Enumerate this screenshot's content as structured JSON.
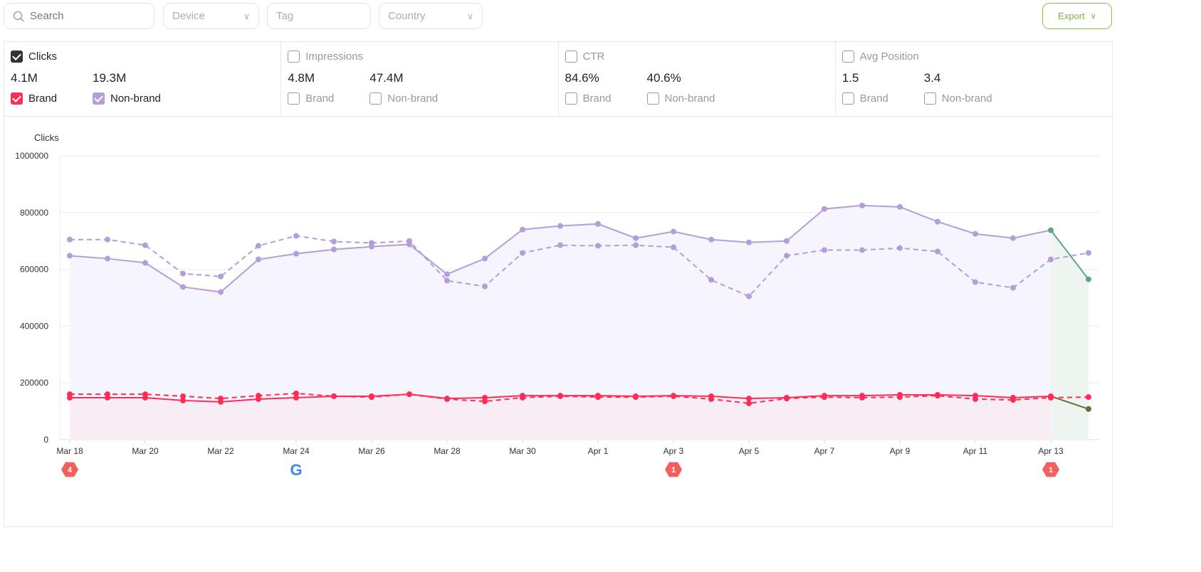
{
  "filters": {
    "search_placeholder": "Search",
    "device": "Device",
    "tag": "Tag",
    "country": "Country",
    "export": "Export"
  },
  "metrics": [
    {
      "title": "Clicks",
      "checked": true,
      "brand_value": "4.1M",
      "nonbrand_value": "19.3M",
      "brand_label": "Brand",
      "nonbrand_label": "Non-brand",
      "brand_checked": true,
      "nonbrand_checked": true
    },
    {
      "title": "Impressions",
      "checked": false,
      "brand_value": "4.8M",
      "nonbrand_value": "47.4M",
      "brand_label": "Brand",
      "nonbrand_label": "Non-brand",
      "brand_checked": false,
      "nonbrand_checked": false
    },
    {
      "title": "CTR",
      "checked": false,
      "brand_value": "84.6%",
      "nonbrand_value": "40.6%",
      "brand_label": "Brand",
      "nonbrand_label": "Non-brand",
      "brand_checked": false,
      "nonbrand_checked": false
    },
    {
      "title": "Avg Position",
      "checked": false,
      "brand_value": "1.5",
      "nonbrand_value": "3.4",
      "brand_label": "Brand",
      "nonbrand_label": "Non-brand",
      "brand_checked": false,
      "nonbrand_checked": false
    }
  ],
  "colors": {
    "brand": "#ff2d55",
    "nonbrand": "#b39ddb",
    "partial": "#5aa889",
    "partial_brand": "#6b6b3a",
    "clicks_check": "#333333",
    "export": "#7cb342",
    "annotation": "#f25f5c"
  },
  "chart_data": {
    "type": "line",
    "ylabel": "Clicks",
    "ylim": [
      0,
      1000000
    ],
    "yticks": [
      "0",
      "200000",
      "400000",
      "600000",
      "800000",
      "1000000"
    ],
    "x": [
      "Mar 18",
      "Mar 19",
      "Mar 20",
      "Mar 21",
      "Mar 22",
      "Mar 23",
      "Mar 24",
      "Mar 25",
      "Mar 26",
      "Mar 27",
      "Mar 28",
      "Mar 29",
      "Mar 30",
      "Mar 31",
      "Apr 1",
      "Apr 2",
      "Apr 3",
      "Apr 4",
      "Apr 5",
      "Apr 6",
      "Apr 7",
      "Apr 8",
      "Apr 9",
      "Apr 10",
      "Apr 11",
      "Apr 12",
      "Apr 13",
      "Apr 14"
    ],
    "xticks": [
      "Mar 18",
      "Mar 20",
      "Mar 22",
      "Mar 24",
      "Mar 26",
      "Mar 28",
      "Mar 30",
      "Apr 1",
      "Apr 3",
      "Apr 5",
      "Apr 7",
      "Apr 9",
      "Apr 11",
      "Apr 13"
    ],
    "grid": true,
    "partial_from": "Apr 13",
    "series": [
      {
        "key": "nonbrand",
        "style": "solid",
        "values": [
          648000,
          638000,
          623000,
          538000,
          520000,
          635000,
          655000,
          670000,
          680000,
          688000,
          583000,
          638000,
          740000,
          753000,
          760000,
          710000,
          733000,
          705000,
          695000,
          700000,
          813000,
          825000,
          820000,
          768000,
          725000,
          710000,
          738000,
          565000
        ]
      },
      {
        "key": "nonbrand",
        "style": "dashed",
        "values": [
          705000,
          705000,
          685000,
          585000,
          575000,
          683000,
          718000,
          698000,
          693000,
          700000,
          560000,
          540000,
          658000,
          685000,
          683000,
          685000,
          678000,
          563000,
          505000,
          648000,
          668000,
          668000,
          675000,
          663000,
          555000,
          535000,
          635000,
          658000
        ]
      },
      {
        "key": "brand",
        "style": "solid",
        "values": [
          148000,
          148000,
          148000,
          138000,
          133000,
          143000,
          148000,
          153000,
          153000,
          160000,
          145000,
          148000,
          155000,
          155000,
          155000,
          153000,
          155000,
          153000,
          145000,
          148000,
          155000,
          155000,
          158000,
          158000,
          155000,
          148000,
          153000,
          108000
        ]
      },
      {
        "key": "brand",
        "style": "dashed",
        "values": [
          160000,
          160000,
          160000,
          153000,
          145000,
          155000,
          163000,
          153000,
          150000,
          160000,
          143000,
          135000,
          148000,
          153000,
          150000,
          150000,
          153000,
          143000,
          128000,
          145000,
          150000,
          148000,
          150000,
          155000,
          143000,
          140000,
          148000,
          150000
        ]
      }
    ],
    "annotations": [
      {
        "date": "Mar 18",
        "label": "4"
      },
      {
        "date": "Mar 24",
        "icon": "google-icon"
      },
      {
        "date": "Apr 3",
        "label": "1"
      },
      {
        "date": "Apr 13",
        "label": "1"
      }
    ]
  }
}
